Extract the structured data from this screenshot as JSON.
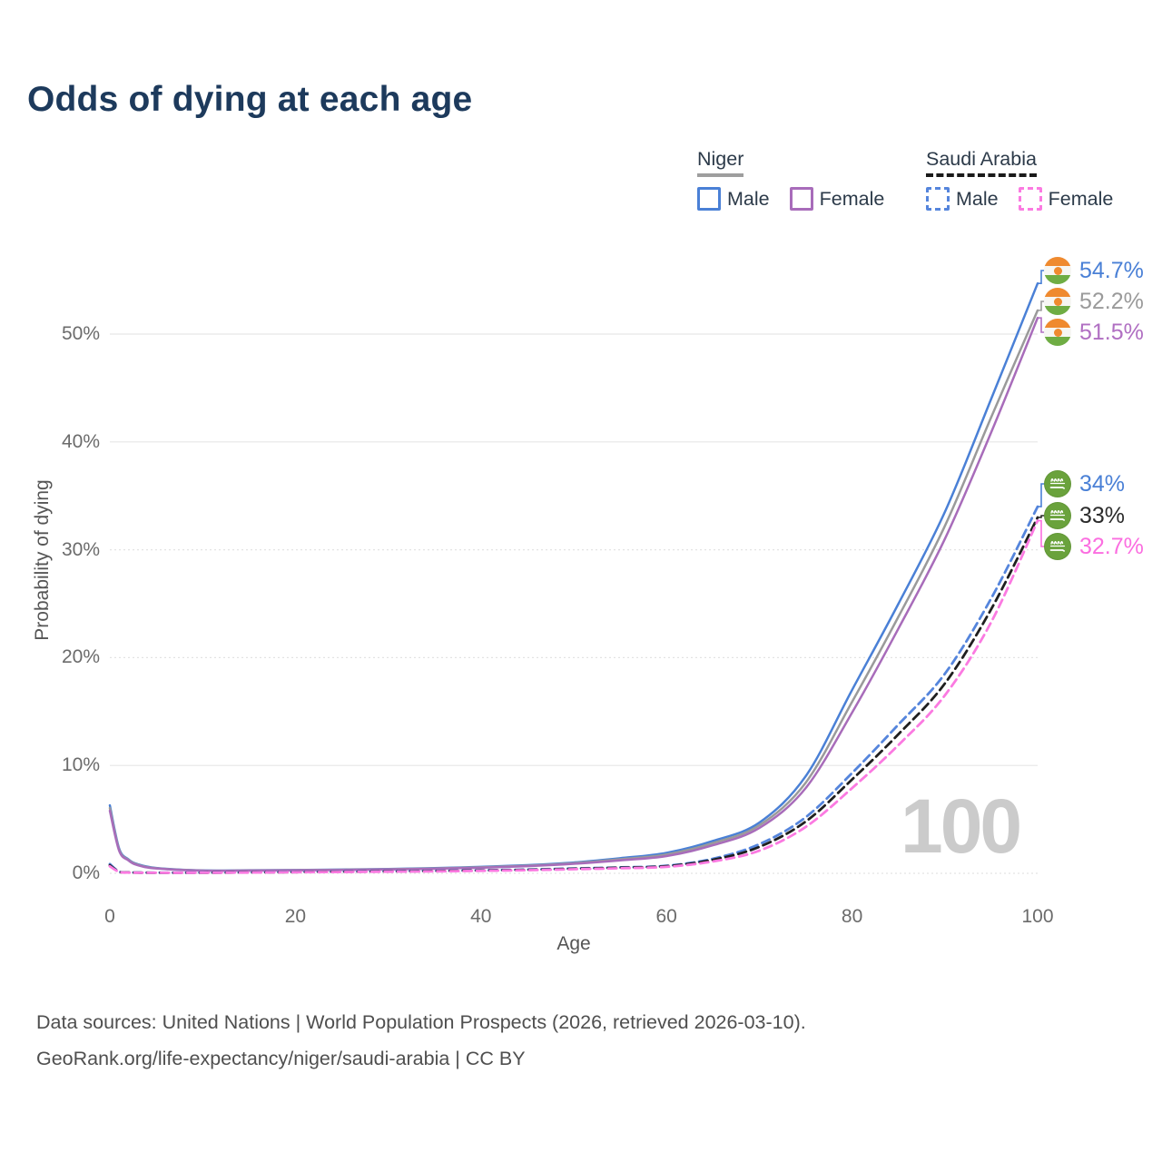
{
  "title": "Odds of dying at each age",
  "watermark": "100",
  "legend": {
    "niger": {
      "label": "Niger",
      "male": "Male",
      "female": "Female"
    },
    "saudi": {
      "label": "Saudi Arabia",
      "male": "Male",
      "female": "Female"
    }
  },
  "colors": {
    "niger_male": "#4a80d6",
    "niger_average": "#9a9a9a",
    "niger_female": "#a86cba",
    "saudi_male": "#5585dc",
    "saudi_average": "#1f1f1f",
    "saudi_female": "#fb7ae1",
    "gridline": "#ececec",
    "title_text": "#1d3a5c"
  },
  "chart_data": {
    "type": "line",
    "title": "Odds of dying at each age",
    "xlabel": "Age",
    "ylabel": "Probability of dying",
    "xlim": [
      0,
      100
    ],
    "ylim": [
      0,
      57
    ],
    "grid": true,
    "legend_position": "top-right",
    "xticks": [
      {
        "v": 0,
        "label": "0"
      },
      {
        "v": 20,
        "label": "20"
      },
      {
        "v": 40,
        "label": "40"
      },
      {
        "v": 60,
        "label": "60"
      },
      {
        "v": 80,
        "label": "80"
      },
      {
        "v": 100,
        "label": "100"
      }
    ],
    "yticks": [
      {
        "v": 0,
        "label": "0%"
      },
      {
        "v": 10,
        "label": "10%"
      },
      {
        "v": 20,
        "label": "20%"
      },
      {
        "v": 30,
        "label": "30%"
      },
      {
        "v": 40,
        "label": "40%"
      },
      {
        "v": 50,
        "label": "50%"
      }
    ],
    "ages": [
      0,
      1,
      2,
      3,
      5,
      10,
      15,
      20,
      25,
      30,
      35,
      40,
      45,
      50,
      55,
      60,
      65,
      70,
      75,
      80,
      85,
      90,
      95,
      100
    ],
    "series": [
      {
        "key": "niger_male",
        "name": "Niger Male",
        "style": "solid",
        "color": "#4a80d6",
        "values": [
          6.3,
          2.3,
          1.3,
          0.85,
          0.5,
          0.27,
          0.28,
          0.31,
          0.35,
          0.4,
          0.48,
          0.6,
          0.76,
          1.0,
          1.4,
          1.9,
          3.0,
          4.7,
          9.0,
          17.0,
          25.0,
          33.5,
          44.0,
          54.7
        ]
      },
      {
        "key": "niger_average",
        "name": "Niger Average",
        "style": "solid",
        "color": "#9a9a9a",
        "values": [
          6.05,
          2.2,
          1.25,
          0.8,
          0.47,
          0.25,
          0.26,
          0.29,
          0.33,
          0.38,
          0.45,
          0.56,
          0.71,
          0.94,
          1.3,
          1.75,
          2.8,
          4.45,
          8.4,
          15.9,
          23.8,
          32.2,
          42.3,
          52.2
        ]
      },
      {
        "key": "niger_female",
        "name": "Niger Female",
        "style": "solid",
        "color": "#a86cba",
        "values": [
          5.8,
          2.1,
          1.2,
          0.75,
          0.45,
          0.24,
          0.25,
          0.27,
          0.31,
          0.36,
          0.42,
          0.52,
          0.66,
          0.88,
          1.2,
          1.6,
          2.6,
          4.2,
          7.9,
          14.9,
          22.7,
          31.0,
          40.9,
          51.5
        ]
      },
      {
        "key": "saudi_male",
        "name": "Saudi Arabia Male",
        "style": "dashed",
        "color": "#5585dc",
        "values": [
          0.85,
          0.16,
          0.09,
          0.07,
          0.06,
          0.06,
          0.09,
          0.13,
          0.16,
          0.19,
          0.23,
          0.28,
          0.35,
          0.45,
          0.55,
          0.7,
          1.35,
          2.7,
          5.2,
          9.3,
          13.8,
          18.5,
          25.5,
          34.0
        ]
      },
      {
        "key": "saudi_average",
        "name": "Saudi Arabia Average",
        "style": "dashed",
        "color": "#1f1f1f",
        "values": [
          0.75,
          0.14,
          0.08,
          0.06,
          0.055,
          0.055,
          0.08,
          0.11,
          0.14,
          0.17,
          0.21,
          0.26,
          0.32,
          0.42,
          0.52,
          0.66,
          1.25,
          2.45,
          4.8,
          8.7,
          12.9,
          17.6,
          24.5,
          33.0
        ]
      },
      {
        "key": "saudi_female",
        "name": "Saudi Arabia Female",
        "style": "dashed",
        "color": "#fb7ae1",
        "values": [
          0.65,
          0.13,
          0.07,
          0.055,
          0.05,
          0.05,
          0.07,
          0.1,
          0.12,
          0.15,
          0.18,
          0.23,
          0.29,
          0.38,
          0.47,
          0.6,
          1.1,
          2.1,
          4.3,
          7.9,
          11.9,
          16.5,
          23.3,
          32.7
        ]
      }
    ],
    "end_labels": [
      {
        "series": "Niger Male",
        "text": "54.7%",
        "flag": "niger",
        "color": "#4a80d6",
        "value": 54.7
      },
      {
        "series": "Niger Average",
        "text": "52.2%",
        "flag": "niger",
        "color": "#9a9a9a",
        "value": 52.2
      },
      {
        "series": "Niger Female",
        "text": "51.5%",
        "flag": "niger",
        "color": "#b06fc2",
        "value": 51.5
      },
      {
        "series": "Saudi Arabia Male",
        "text": "34%",
        "flag": "saudi",
        "color": "#4a80d6",
        "value": 34
      },
      {
        "series": "Saudi Arabia Average",
        "text": "33%",
        "flag": "saudi",
        "color": "#2b2b2b",
        "value": 33
      },
      {
        "series": "Saudi Arabia Female",
        "text": "32.7%",
        "flag": "saudi",
        "color": "#fb6ee0",
        "value": 32.7
      }
    ]
  },
  "footer": {
    "line1": "Data sources: United Nations | World Population Prospects (2026, retrieved 2026-03-10).",
    "line2": "GeoRank.org/life-expectancy/niger/saudi-arabia | CC BY"
  }
}
